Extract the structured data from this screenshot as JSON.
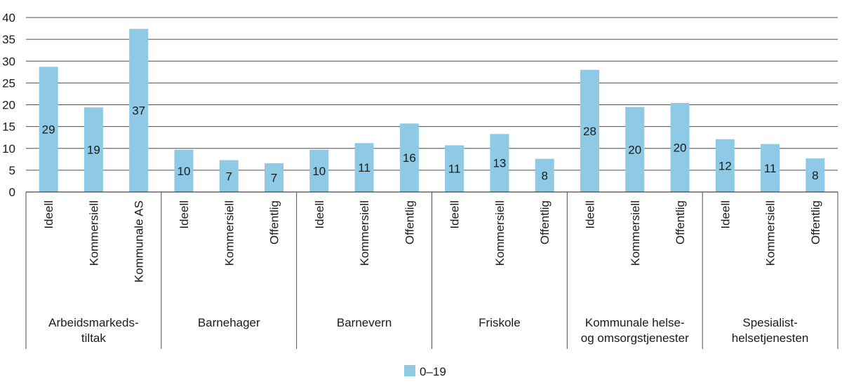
{
  "chart_data": {
    "type": "bar",
    "title": "",
    "xlabel": "",
    "ylabel": "",
    "ylim": [
      0,
      40
    ],
    "yticks": [
      0,
      5,
      10,
      15,
      20,
      25,
      30,
      35,
      40
    ],
    "grid": true,
    "legend_position": "bottom-center",
    "bar_color": "#8ecae6",
    "groups": [
      {
        "label_lines": [
          "Arbeidsmarkeds-",
          "tiltak"
        ],
        "categories": [
          "Ideell",
          "Kommersiell",
          "Kommunale AS"
        ],
        "values": [
          28.7,
          19.4,
          37.4
        ],
        "data_labels": [
          "29",
          "19",
          "37"
        ]
      },
      {
        "label_lines": [
          "Barnehager"
        ],
        "categories": [
          "Ideell",
          "Kommersiell",
          "Offentlig"
        ],
        "values": [
          9.7,
          7.3,
          6.6
        ],
        "data_labels": [
          "10",
          "7",
          "7"
        ]
      },
      {
        "label_lines": [
          "Barnevern"
        ],
        "categories": [
          "Ideell",
          "Kommersiell",
          "Offentlig"
        ],
        "values": [
          9.7,
          11.2,
          15.7
        ],
        "data_labels": [
          "10",
          "11",
          "16"
        ]
      },
      {
        "label_lines": [
          "Friskole"
        ],
        "categories": [
          "Ideell",
          "Kommersiell",
          "Offentlig"
        ],
        "values": [
          10.7,
          13.3,
          7.6
        ],
        "data_labels": [
          "11",
          "13",
          "8"
        ]
      },
      {
        "label_lines": [
          "Kommunale helse-",
          "og omsorgstjenester"
        ],
        "categories": [
          "Ideell",
          "Kommersiell",
          "Offentlig"
        ],
        "values": [
          28.0,
          19.5,
          20.4
        ],
        "data_labels": [
          "28",
          "20",
          "20"
        ]
      },
      {
        "label_lines": [
          "Spesialist-",
          "helsetjenesten"
        ],
        "categories": [
          "Ideell",
          "Kommersiell",
          "Offentlig"
        ],
        "values": [
          12.1,
          11.0,
          7.7
        ],
        "data_labels": [
          "12",
          "11",
          "8"
        ]
      }
    ],
    "series": [
      {
        "name": "0–19"
      }
    ]
  }
}
